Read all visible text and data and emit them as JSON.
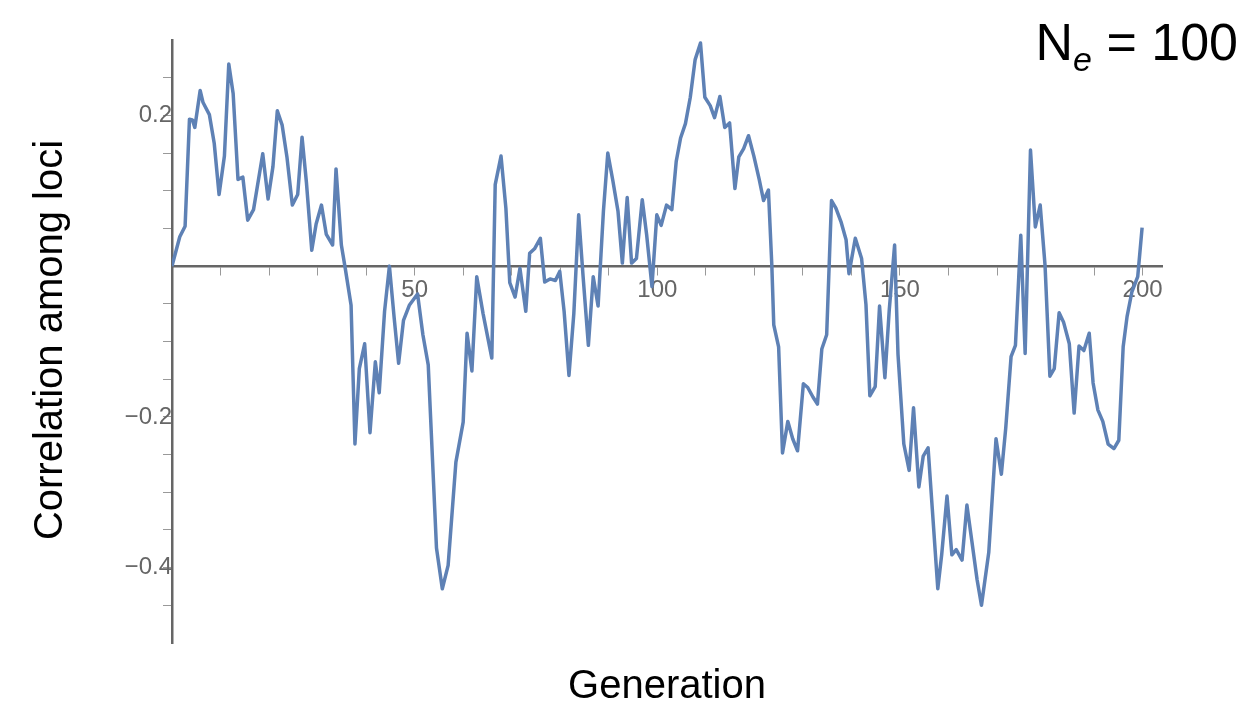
{
  "chart_data": {
    "type": "line",
    "xlabel": "Generation",
    "ylabel": "Correlation among loci",
    "annotations": [
      "N$_{e}$ = 100"
    ],
    "xlim": [
      0,
      204
    ],
    "ylim": [
      -0.5,
      0.3
    ],
    "xticks": [
      {
        "value": 10,
        "label": null
      },
      {
        "value": 20,
        "label": null
      },
      {
        "value": 30,
        "label": null
      },
      {
        "value": 40,
        "label": null
      },
      50,
      {
        "value": 60,
        "label": null
      },
      {
        "value": 70,
        "label": null
      },
      {
        "value": 80,
        "label": null
      },
      {
        "value": 90,
        "label": null
      },
      100,
      {
        "value": 110,
        "label": null
      },
      {
        "value": 120,
        "label": null
      },
      {
        "value": 130,
        "label": null
      },
      {
        "value": 140,
        "label": null
      },
      150,
      {
        "value": 160,
        "label": null
      },
      {
        "value": 170,
        "label": null
      },
      {
        "value": 180,
        "label": null
      },
      {
        "value": 190,
        "label": null
      },
      200
    ],
    "yticks": [
      {
        "value": -0.45,
        "label": null
      },
      {
        "value": -0.4,
        "label": "−0.4"
      },
      {
        "value": -0.35,
        "label": null
      },
      {
        "value": -0.3,
        "label": null
      },
      {
        "value": -0.25,
        "label": null
      },
      {
        "value": -0.2,
        "label": "−0.2"
      },
      {
        "value": -0.15,
        "label": null
      },
      {
        "value": -0.1,
        "label": null
      },
      {
        "value": -0.05,
        "label": null
      },
      {
        "value": 0.05,
        "label": null
      },
      {
        "value": 0.1,
        "label": null
      },
      {
        "value": 0.15,
        "label": null
      },
      0.2,
      {
        "value": 0.25,
        "label": null
      }
    ],
    "marker": "none",
    "line_style": "solid",
    "legend": false,
    "series": [
      {
        "color": "#5e81b5",
        "x": [
          0,
          1.6,
          2.7,
          3.6,
          4.2,
          4.7,
          5.8,
          6.4,
          7.7,
          8.7,
          9.7,
          10.8,
          11.7,
          12.6,
          13.6,
          14.6,
          15.6,
          16.8,
          18.7,
          19.8,
          20.8,
          21.7,
          22.7,
          23.7,
          24.8,
          25.9,
          26.8,
          27.7,
          28.8,
          29.7,
          30.8,
          31.8,
          33.1,
          33.8,
          34.9,
          35.7,
          36.9,
          37.7,
          38.6,
          39.7,
          40.8,
          41.9,
          42.7,
          43.8,
          44.8,
          45.8,
          46.7,
          47.7,
          48.9,
          50.6,
          51.7,
          52.8,
          54.5,
          55.7,
          56.9,
          58.5,
          60.0,
          60.8,
          61.8,
          62.8,
          64.1,
          65.9,
          66.6,
          67.8,
          68.8,
          69.6,
          70.7,
          71.7,
          72.9,
          73.7,
          74.7,
          75.9,
          76.8,
          77.9,
          79.0,
          79.9,
          80.8,
          81.8,
          82.8,
          83.8,
          84.7,
          85.8,
          86.8,
          87.8,
          88.9,
          89.8,
          90.8,
          91.9,
          92.8,
          93.8,
          94.7,
          95.7,
          96.9,
          97.8,
          98.9,
          99.9,
          100.8,
          101.9,
          103.0,
          103.9,
          104.8,
          105.8,
          106.8,
          107.8,
          108.9,
          109.8,
          110.9,
          111.8,
          112.9,
          113.9,
          114.9,
          116.0,
          116.8,
          117.8,
          118.8,
          119.9,
          121.0,
          121.9,
          122.9,
          123.6,
          124.0,
          125.0,
          125.8,
          126.9,
          127.9,
          128.9,
          130.1,
          131.0,
          132.1,
          133.0,
          133.9,
          134.9,
          135.9,
          136.8,
          137.9,
          138.9,
          139.5,
          140.8,
          142.1,
          143.0,
          143.8,
          144.9,
          145.8,
          146.9,
          147.8,
          148.9,
          149.6,
          150.8,
          151.9,
          152.8,
          153.9,
          154.8,
          155.8,
          157.8,
          158.6,
          159.7,
          160.7,
          161.6,
          162.8,
          163.8,
          164.8,
          165.9,
          166.8,
          168.3,
          169.8,
          170.9,
          171.8,
          172.9,
          173.8,
          174.9,
          175.8,
          176.9,
          177.9,
          178.9,
          179.9,
          180.9,
          181.8,
          182.8,
          183.7,
          184.9,
          185.9,
          186.9,
          187.9,
          189.0,
          189.8,
          190.8,
          191.8,
          192.9,
          194.1,
          195.1,
          196.0,
          196.8,
          197.8,
          199.0,
          199.9
        ],
        "values": [
          0,
          0.039,
          0.053,
          0.195,
          0.194,
          0.184,
          0.233,
          0.217,
          0.201,
          0.163,
          0.095,
          0.146,
          0.268,
          0.229,
          0.115,
          0.118,
          0.061,
          0.075,
          0.149,
          0.089,
          0.132,
          0.206,
          0.187,
          0.144,
          0.081,
          0.095,
          0.171,
          0.111,
          0.021,
          0.056,
          0.081,
          0.042,
          0.028,
          0.129,
          0.028,
          -0.003,
          -0.052,
          -0.236,
          -0.136,
          -0.103,
          -0.221,
          -0.127,
          -0.168,
          -0.06,
          0,
          -0.07,
          -0.129,
          -0.072,
          -0.052,
          -0.037,
          -0.091,
          -0.131,
          -0.374,
          -0.428,
          -0.397,
          -0.26,
          -0.207,
          -0.089,
          -0.139,
          -0.014,
          -0.063,
          -0.122,
          0.108,
          0.146,
          0.077,
          -0.022,
          -0.041,
          -0.003,
          -0.06,
          0.017,
          0.023,
          0.037,
          -0.021,
          -0.017,
          -0.019,
          -0.007,
          -0.06,
          -0.145,
          -0.063,
          0.068,
          -0.013,
          -0.105,
          -0.014,
          -0.053,
          0.073,
          0.15,
          0.115,
          0.073,
          0.004,
          0.091,
          0.004,
          0.01,
          0.088,
          0.042,
          -0.027,
          0.068,
          0.054,
          0.081,
          0.075,
          0.139,
          0.17,
          0.189,
          0.224,
          0.274,
          0.296,
          0.224,
          0.213,
          0.197,
          0.225,
          0.184,
          0.19,
          0.103,
          0.145,
          0.156,
          0.173,
          0.146,
          0.115,
          0.087,
          0.101,
          0.001,
          -0.078,
          -0.107,
          -0.248,
          -0.206,
          -0.229,
          -0.245,
          -0.156,
          -0.161,
          -0.174,
          -0.183,
          -0.11,
          -0.091,
          0.087,
          0.077,
          0.058,
          0.035,
          -0.01,
          0.037,
          0.01,
          -0.051,
          -0.172,
          -0.16,
          -0.053,
          -0.148,
          -0.058,
          0.028,
          -0.117,
          -0.236,
          -0.271,
          -0.188,
          -0.293,
          -0.252,
          -0.241,
          -0.428,
          -0.383,
          -0.305,
          -0.383,
          -0.376,
          -0.39,
          -0.317,
          -0.364,
          -0.416,
          -0.45,
          -0.38,
          -0.229,
          -0.276,
          -0.215,
          -0.12,
          -0.105,
          0.041,
          -0.116,
          0.154,
          0.052,
          0.081,
          0.001,
          -0.146,
          -0.136,
          -0.062,
          -0.074,
          -0.103,
          -0.195,
          -0.106,
          -0.112,
          -0.089,
          -0.155,
          -0.191,
          -0.206,
          -0.236,
          -0.242,
          -0.231,
          -0.107,
          -0.067,
          -0.034,
          -0.014,
          0.051
        ]
      }
    ]
  }
}
